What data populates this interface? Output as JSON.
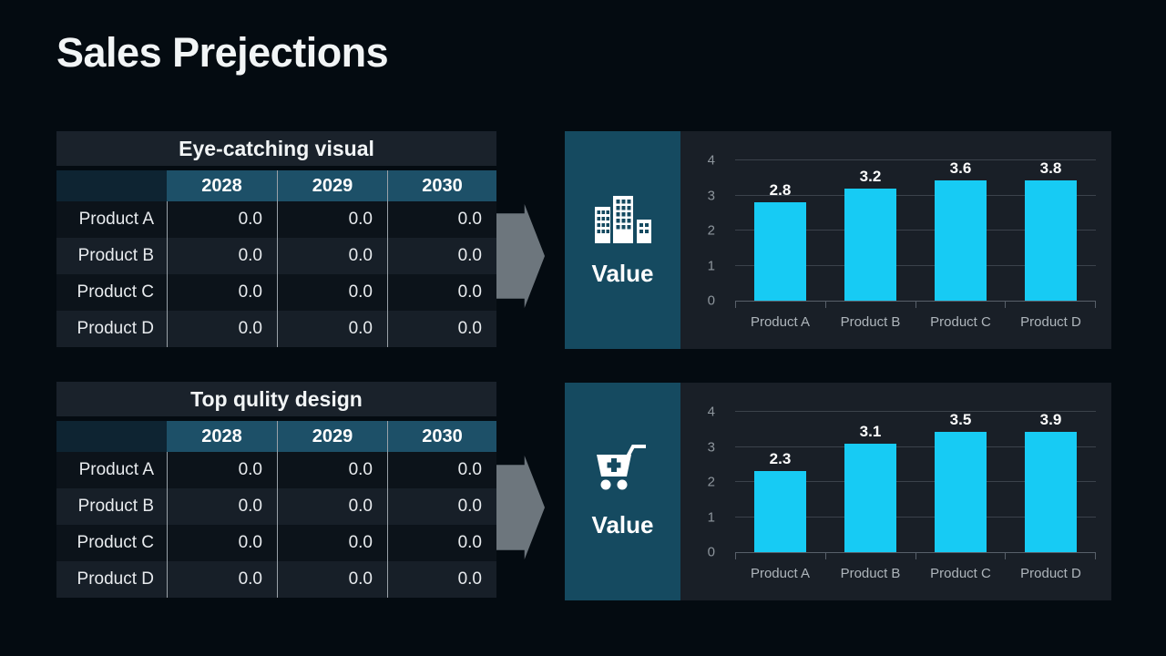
{
  "slide": {
    "title": "Sales Prejections"
  },
  "icons": {
    "chart1_panel": "office-building-icon",
    "chart2_panel": "cart-plus-icon",
    "flow": "arrow-right-icon"
  },
  "colors": {
    "bg": "#040b11",
    "table_title_bg": "#1a222b",
    "corner_cell_bg": "#0e2432",
    "year_cell_bg": "#1d5068",
    "row_dark": "#0c131a",
    "row_light": "#171f28",
    "divider": "#99a1a8",
    "panel_teal": "#154a60",
    "chart_bg": "#191f27",
    "grid_line": "#3b424b",
    "axis_line": "#58606a",
    "bar_cyan": "#17cbf4",
    "arrow_gray": "#6d767d",
    "text_white": "#f2f5f6",
    "tick_text": "#8d959c",
    "category_text": "#aeb5bb",
    "table_text": "#e8ebee"
  },
  "chart_data": [
    {
      "type": "table",
      "title": "Eye-catching visual",
      "columns": [
        "2028",
        "2029",
        "2030"
      ],
      "row_labels": [
        "Product A",
        "Product B",
        "Product C",
        "Product D"
      ],
      "rows": [
        [
          "0.0",
          "0.0",
          "0.0"
        ],
        [
          "0.0",
          "0.0",
          "0.0"
        ],
        [
          "0.0",
          "0.0",
          "0.0"
        ],
        [
          "0.0",
          "0.0",
          "0.0"
        ]
      ]
    },
    {
      "type": "bar",
      "title": "Value",
      "panel_label": "Value",
      "panel_icon": "office-building-icon",
      "categories": [
        "Product A",
        "Product B",
        "Product C",
        "Product D"
      ],
      "values": [
        2.8,
        3.2,
        3.6,
        3.8
      ],
      "y_ticks": [
        0,
        1,
        2,
        3,
        4
      ],
      "ylim": [
        0,
        4
      ],
      "xlabel": "",
      "ylabel": "",
      "grid": true,
      "legend": false
    },
    {
      "type": "table",
      "title": "Top qulity design",
      "columns": [
        "2028",
        "2029",
        "2030"
      ],
      "row_labels": [
        "Product A",
        "Product B",
        "Product C",
        "Product D"
      ],
      "rows": [
        [
          "0.0",
          "0.0",
          "0.0"
        ],
        [
          "0.0",
          "0.0",
          "0.0"
        ],
        [
          "0.0",
          "0.0",
          "0.0"
        ],
        [
          "0.0",
          "0.0",
          "0.0"
        ]
      ]
    },
    {
      "type": "bar",
      "title": "Value",
      "panel_label": "Value",
      "panel_icon": "cart-plus-icon",
      "categories": [
        "Product A",
        "Product B",
        "Product C",
        "Product D"
      ],
      "values": [
        2.3,
        3.1,
        3.5,
        3.9
      ],
      "y_ticks": [
        0,
        1,
        2,
        3,
        4
      ],
      "ylim": [
        0,
        4
      ],
      "xlabel": "",
      "ylabel": "",
      "grid": true,
      "legend": false
    }
  ]
}
